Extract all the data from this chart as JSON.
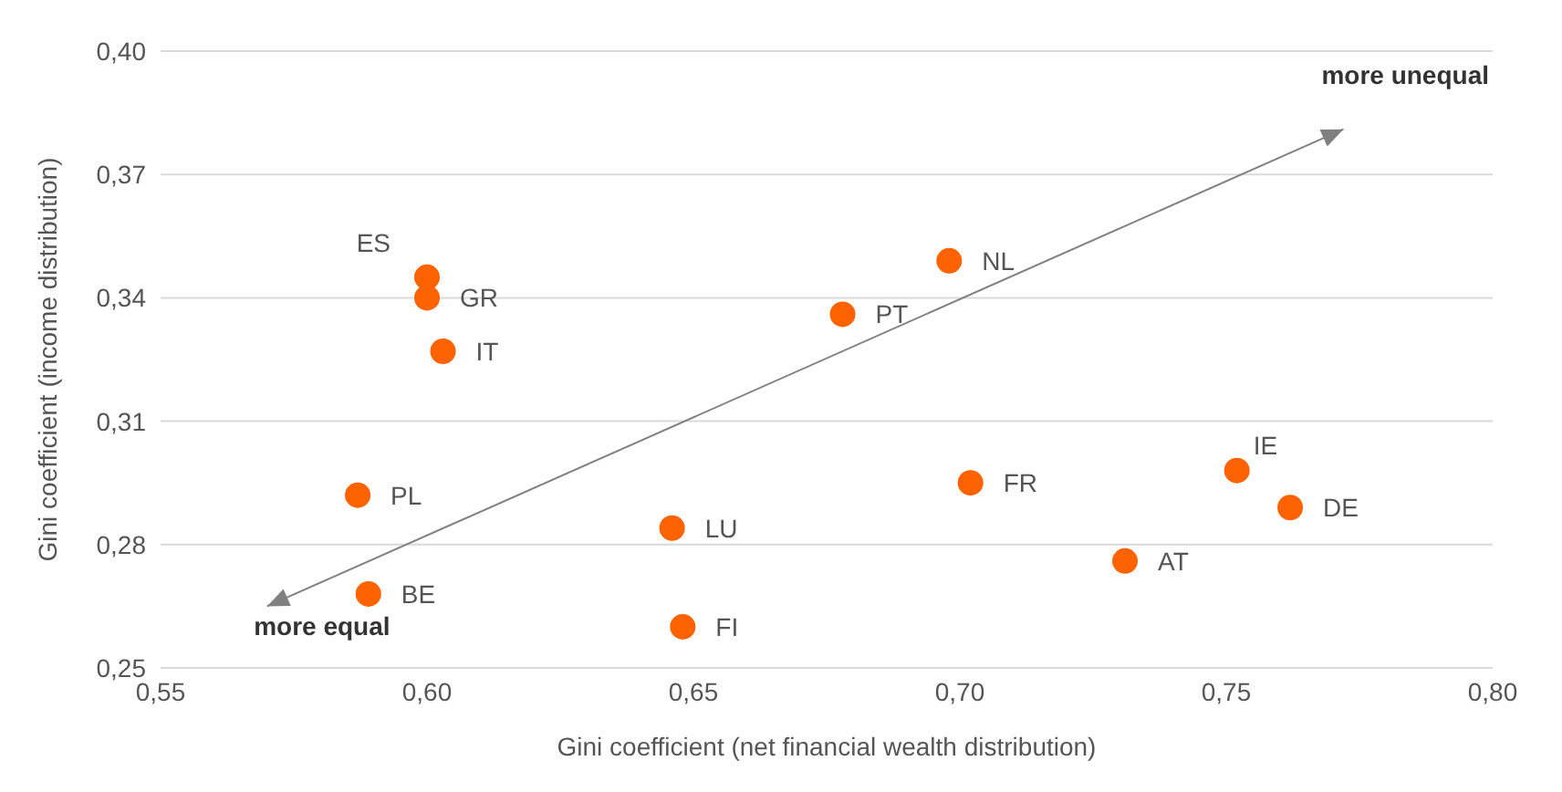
{
  "chart_data": {
    "type": "scatter",
    "xlabel": "Gini coefficient (net financial wealth distribution)",
    "ylabel": "Gini coefficient (income distribution)",
    "xlim": [
      0.55,
      0.8
    ],
    "ylim": [
      0.25,
      0.4
    ],
    "xticks": [
      {
        "value": 0.55,
        "label": "0,55"
      },
      {
        "value": 0.6,
        "label": "0,60"
      },
      {
        "value": 0.65,
        "label": "0,65"
      },
      {
        "value": 0.7,
        "label": "0,70"
      },
      {
        "value": 0.75,
        "label": "0,75"
      },
      {
        "value": 0.8,
        "label": "0,80"
      }
    ],
    "yticks": [
      {
        "value": 0.25,
        "label": "0,25"
      },
      {
        "value": 0.28,
        "label": "0,28"
      },
      {
        "value": 0.31,
        "label": "0,31"
      },
      {
        "value": 0.34,
        "label": "0,34"
      },
      {
        "value": 0.37,
        "label": "0,37"
      },
      {
        "value": 0.4,
        "label": "0,40"
      }
    ],
    "grid": "y",
    "legend": false,
    "marker": "circle",
    "annotations": [
      "more unequal",
      "more equal"
    ],
    "series": [
      {
        "name": "ES",
        "color": "#ff6200",
        "x": [
          0.6
        ],
        "values": [
          0.345
        ]
      },
      {
        "name": "GR",
        "color": "#ff6200",
        "x": [
          0.6
        ],
        "values": [
          0.34
        ]
      },
      {
        "name": "IT",
        "color": "#ff6200",
        "x": [
          0.603
        ],
        "values": [
          0.327
        ]
      },
      {
        "name": "PL",
        "color": "#ff6200",
        "x": [
          0.587
        ],
        "values": [
          0.292
        ]
      },
      {
        "name": "BE",
        "color": "#ff6200",
        "x": [
          0.589
        ],
        "values": [
          0.268
        ]
      },
      {
        "name": "LU",
        "color": "#ff6200",
        "x": [
          0.646
        ],
        "values": [
          0.284
        ]
      },
      {
        "name": "FI",
        "color": "#ff6200",
        "x": [
          0.648
        ],
        "values": [
          0.26
        ]
      },
      {
        "name": "PT",
        "color": "#ff6200",
        "x": [
          0.678
        ],
        "values": [
          0.336
        ]
      },
      {
        "name": "NL",
        "color": "#ff6200",
        "x": [
          0.698
        ],
        "values": [
          0.349
        ]
      },
      {
        "name": "FR",
        "color": "#ff6200",
        "x": [
          0.702
        ],
        "values": [
          0.295
        ]
      },
      {
        "name": "AT",
        "color": "#ff6200",
        "x": [
          0.731
        ],
        "values": [
          0.276
        ]
      },
      {
        "name": "IE",
        "color": "#ff6200",
        "x": [
          0.752
        ],
        "values": [
          0.298
        ]
      },
      {
        "name": "DE",
        "color": "#ff6200",
        "x": [
          0.762
        ],
        "values": [
          0.289
        ]
      }
    ]
  }
}
